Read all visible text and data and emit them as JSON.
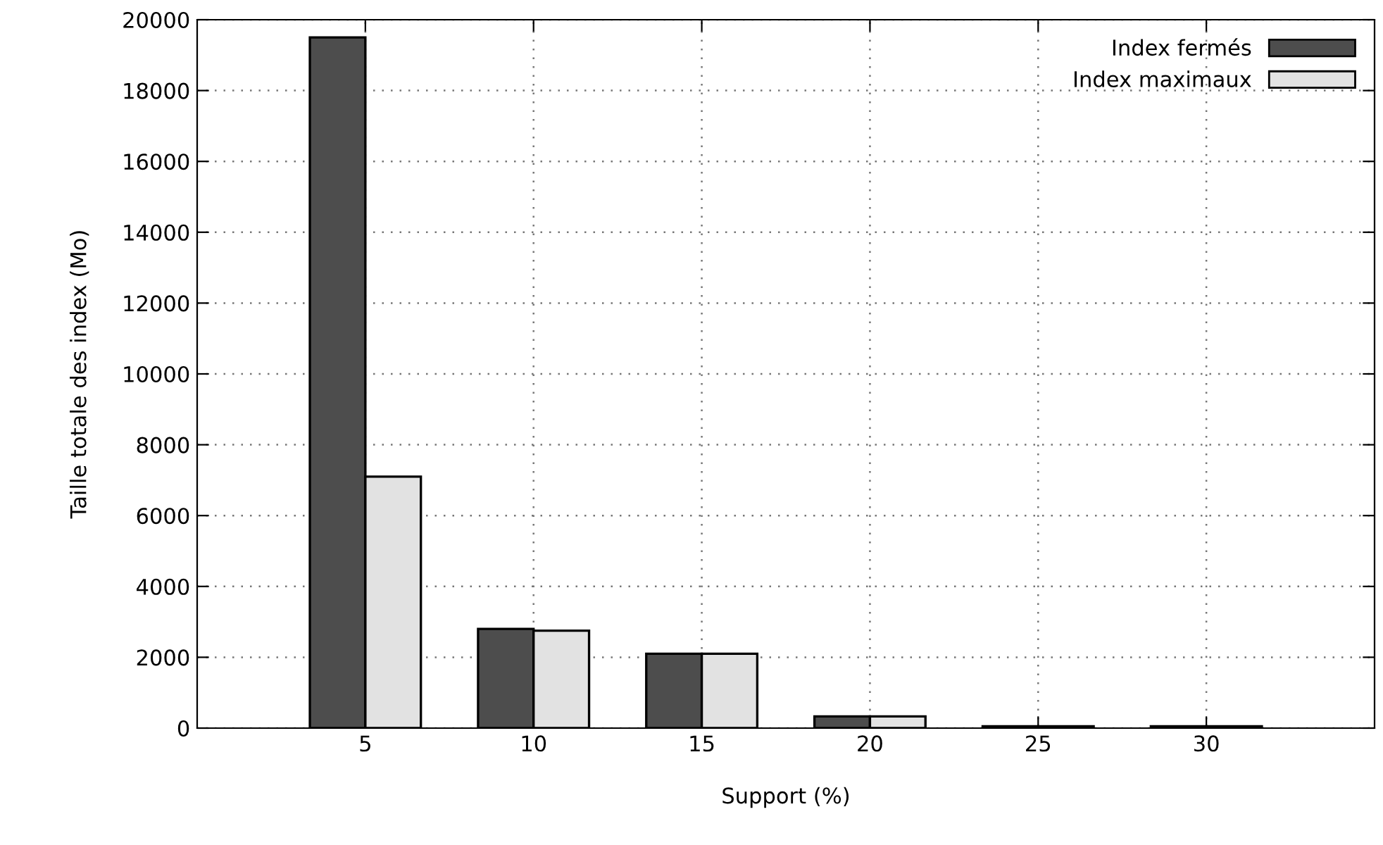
{
  "chart_data": {
    "type": "bar",
    "xlabel": "Support (%)",
    "ylabel": "Taille totale des index (Mo)",
    "categories": [
      "5",
      "10",
      "15",
      "20",
      "25",
      "30"
    ],
    "series": [
      {
        "name": "Index fermés",
        "color": "#4d4d4d",
        "values": [
          19500,
          2800,
          2100,
          330,
          50,
          50
        ]
      },
      {
        "name": "Index maximaux",
        "color": "#e2e2e2",
        "values": [
          7100,
          2750,
          2100,
          330,
          50,
          50
        ]
      }
    ],
    "ylim": [
      0,
      20000
    ],
    "yticks": [
      0,
      2000,
      4000,
      6000,
      8000,
      10000,
      12000,
      14000,
      16000,
      18000,
      20000
    ],
    "grid": true,
    "legend": "top right"
  }
}
